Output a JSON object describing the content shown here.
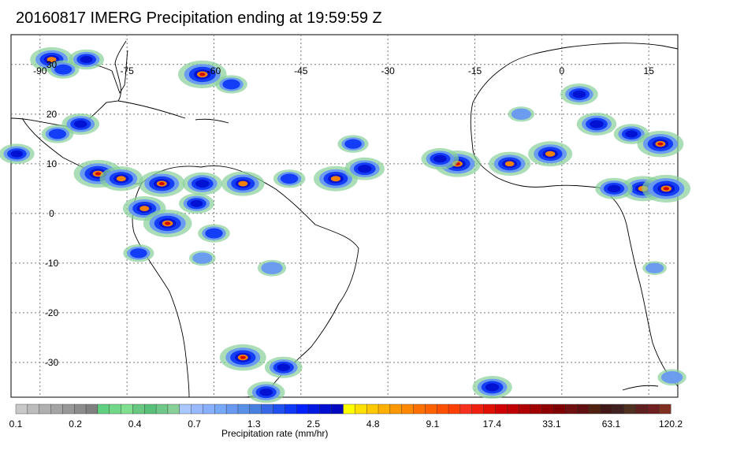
{
  "title": "20160817 IMERG Precipitation ending at 19:59:59 Z",
  "map": {
    "lon_range": [
      -95,
      20
    ],
    "lat_range": [
      -37,
      36
    ],
    "lon_labels": [
      {
        "value": -90,
        "text": "-90"
      },
      {
        "value": -75,
        "text": "-75"
      },
      {
        "value": -60,
        "text": "-60"
      },
      {
        "value": -45,
        "text": "-45"
      },
      {
        "value": -30,
        "text": "-30"
      },
      {
        "value": -15,
        "text": "-15"
      },
      {
        "value": 0,
        "text": "0"
      },
      {
        "value": 15,
        "text": "15"
      }
    ],
    "lat_labels": [
      {
        "value": 30,
        "text": "30"
      },
      {
        "value": 20,
        "text": "20"
      },
      {
        "value": 10,
        "text": "10"
      },
      {
        "value": 0,
        "text": "0"
      },
      {
        "value": -10,
        "text": "-10"
      },
      {
        "value": -20,
        "text": "-20"
      },
      {
        "value": -30,
        "text": "-30"
      }
    ],
    "grid_lines": "dotted"
  },
  "colorbar": {
    "label": "Precipitation rate (mm/hr)",
    "ticks": [
      "0.1",
      "0.2",
      "0.4",
      "0.7",
      "1.3",
      "2.5",
      "4.8",
      "9.1",
      "17.4",
      "33.1",
      "63.1",
      "120.2"
    ],
    "segments_per_tick": 7,
    "colors": [
      "#c8c8c8",
      "#bcbcbc",
      "#b0b0b0",
      "#a4a4a4",
      "#989898",
      "#8c8c8c",
      "#808080",
      "#60d080",
      "#70d888",
      "#80e090",
      "#68c880",
      "#58c078",
      "#70c888",
      "#88d098",
      "#a8c8ff",
      "#98b8ff",
      "#88b0ff",
      "#78a8f8",
      "#6898f0",
      "#5890e8",
      "#4880e0",
      "#3868e8",
      "#2050f0",
      "#1038f8",
      "#0020ff",
      "#0018e0",
      "#0010d0",
      "#0008c0",
      "#ffff00",
      "#ffe000",
      "#ffc800",
      "#ffb000",
      "#ff9800",
      "#ff8800",
      "#ff7000",
      "#ff6000",
      "#ff5000",
      "#ff4000",
      "#f83020",
      "#f02010",
      "#e01000",
      "#d00000",
      "#c00000",
      "#b00000",
      "#a00000",
      "#900000",
      "#800000",
      "#701010",
      "#601010",
      "#502010",
      "#401818",
      "#402020",
      "#503020",
      "#602020",
      "#702020",
      "#803020"
    ]
  },
  "precip_cells": [
    {
      "lon": -88,
      "lat": 31,
      "mag": 2.5
    },
    {
      "lon": -86,
      "lat": 29,
      "mag": 1.5
    },
    {
      "lon": -82,
      "lat": 31,
      "mag": 1.8
    },
    {
      "lon": -62,
      "lat": 28,
      "mag": 3.0
    },
    {
      "lon": -57,
      "lat": 26,
      "mag": 1.5
    },
    {
      "lon": -83,
      "lat": 18,
      "mag": 2.0
    },
    {
      "lon": -87,
      "lat": 16,
      "mag": 1.5
    },
    {
      "lon": -94,
      "lat": 12,
      "mag": 1.8
    },
    {
      "lon": -80,
      "lat": 8,
      "mag": 3.0
    },
    {
      "lon": -76,
      "lat": 7,
      "mag": 2.5
    },
    {
      "lon": -69,
      "lat": 6,
      "mag": 2.8
    },
    {
      "lon": -62,
      "lat": 6,
      "mag": 2.2
    },
    {
      "lon": -55,
      "lat": 6,
      "mag": 2.5
    },
    {
      "lon": -47,
      "lat": 7,
      "mag": 1.5
    },
    {
      "lon": -39,
      "lat": 7,
      "mag": 2.6
    },
    {
      "lon": -34,
      "lat": 9,
      "mag": 2.2
    },
    {
      "lon": -36,
      "lat": 14,
      "mag": 1.4
    },
    {
      "lon": -72,
      "lat": 1,
      "mag": 2.5
    },
    {
      "lon": -68,
      "lat": -2,
      "mag": 3.0
    },
    {
      "lon": -63,
      "lat": 2,
      "mag": 1.8
    },
    {
      "lon": -60,
      "lat": -4,
      "mag": 1.5
    },
    {
      "lon": -73,
      "lat": -8,
      "mag": 1.4
    },
    {
      "lon": -62,
      "lat": -9,
      "mag": 1.0
    },
    {
      "lon": -50,
      "lat": -11,
      "mag": 1.2
    },
    {
      "lon": -55,
      "lat": -29,
      "mag": 2.8
    },
    {
      "lon": -48,
      "lat": -31,
      "mag": 2.0
    },
    {
      "lon": -51,
      "lat": -36,
      "mag": 2.0
    },
    {
      "lon": -12,
      "lat": -35,
      "mag": 2.2
    },
    {
      "lon": -18,
      "lat": 10,
      "mag": 2.8
    },
    {
      "lon": -21,
      "lat": 11,
      "mag": 2.0
    },
    {
      "lon": -9,
      "lat": 10,
      "mag": 2.4
    },
    {
      "lon": -2,
      "lat": 12,
      "mag": 2.6
    },
    {
      "lon": 3,
      "lat": 24,
      "mag": 2.0
    },
    {
      "lon": 6,
      "lat": 18,
      "mag": 2.2
    },
    {
      "lon": 12,
      "lat": 16,
      "mag": 1.8
    },
    {
      "lon": 17,
      "lat": 14,
      "mag": 2.8
    },
    {
      "lon": 14,
      "lat": 5,
      "mag": 2.6
    },
    {
      "lon": 9,
      "lat": 5,
      "mag": 2.0
    },
    {
      "lon": 18,
      "lat": 5,
      "mag": 3.0
    },
    {
      "lon": 19,
      "lat": -33,
      "mag": 1.2
    },
    {
      "lon": -7,
      "lat": 20,
      "mag": 1.0
    },
    {
      "lon": 16,
      "lat": -11,
      "mag": 0.8
    }
  ]
}
